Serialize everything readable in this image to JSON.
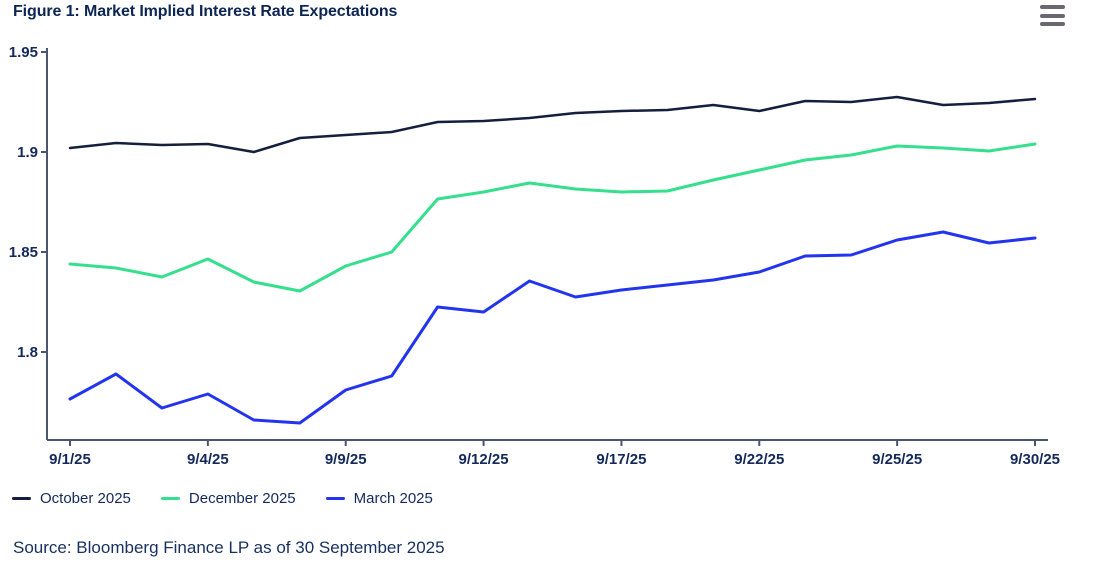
{
  "header": {
    "title": "Figure 1: Market Implied Interest Rate Expectations"
  },
  "chart_data": {
    "type": "line",
    "title": "Figure 1: Market Implied Interest Rate Expectations",
    "categories": [
      "9/1/25",
      "9/2/25",
      "9/3/25",
      "9/4/25",
      "9/5/25",
      "9/8/25",
      "9/9/25",
      "9/10/25",
      "9/11/25",
      "9/12/25",
      "9/15/25",
      "9/16/25",
      "9/17/25",
      "9/18/25",
      "9/19/25",
      "9/22/25",
      "9/23/25",
      "9/24/25",
      "9/25/25",
      "9/26/25",
      "9/29/25",
      "9/30/25"
    ],
    "x_tick_indices": [
      0,
      3,
      6,
      9,
      12,
      15,
      18,
      21
    ],
    "x_tick_labels": [
      "9/1/25",
      "9/4/25",
      "9/9/25",
      "9/12/25",
      "9/17/25",
      "9/22/25",
      "9/25/25",
      "9/30/25"
    ],
    "y_ticks": [
      "1.95",
      "1.9",
      "1.85",
      "1.8"
    ],
    "y_tick_values": [
      1.95,
      1.9,
      1.85,
      1.8
    ],
    "ylim": [
      1.756,
      1.952
    ],
    "grid": "off",
    "legend_position": "bottom-left",
    "series": [
      {
        "name": "October 2025",
        "color": "#151F3D",
        "values": [
          1.902,
          1.9045,
          1.9035,
          1.904,
          1.9,
          1.907,
          1.9085,
          1.91,
          1.915,
          1.9155,
          1.917,
          1.9195,
          1.9205,
          1.921,
          1.9235,
          1.9205,
          1.9255,
          1.925,
          1.9275,
          1.9235,
          1.9245,
          1.9265
        ]
      },
      {
        "name": "December 2025",
        "color": "#35DF8D",
        "values": [
          1.844,
          1.842,
          1.8375,
          1.8465,
          1.835,
          1.8305,
          1.843,
          1.85,
          1.8765,
          1.88,
          1.8845,
          1.8815,
          1.88,
          1.8805,
          1.886,
          1.891,
          1.896,
          1.8985,
          1.903,
          1.902,
          1.9005,
          1.904
        ]
      },
      {
        "name": "March 2025",
        "color": "#2334EE",
        "values": [
          1.7765,
          1.789,
          1.772,
          1.779,
          1.766,
          1.7645,
          1.781,
          1.788,
          1.8225,
          1.82,
          1.8355,
          1.8275,
          1.831,
          1.8335,
          1.836,
          1.84,
          1.848,
          1.8485,
          1.856,
          1.86,
          1.8545,
          1.857
        ]
      }
    ]
  },
  "footer": {
    "source": "Source: Bloomberg Finance LP as of 30 September 2025"
  },
  "colors": {
    "axis_line": "#4A566F",
    "tick_text": "#14295B",
    "title_text": "#0C2553",
    "menu_icon": "#6B6670"
  }
}
